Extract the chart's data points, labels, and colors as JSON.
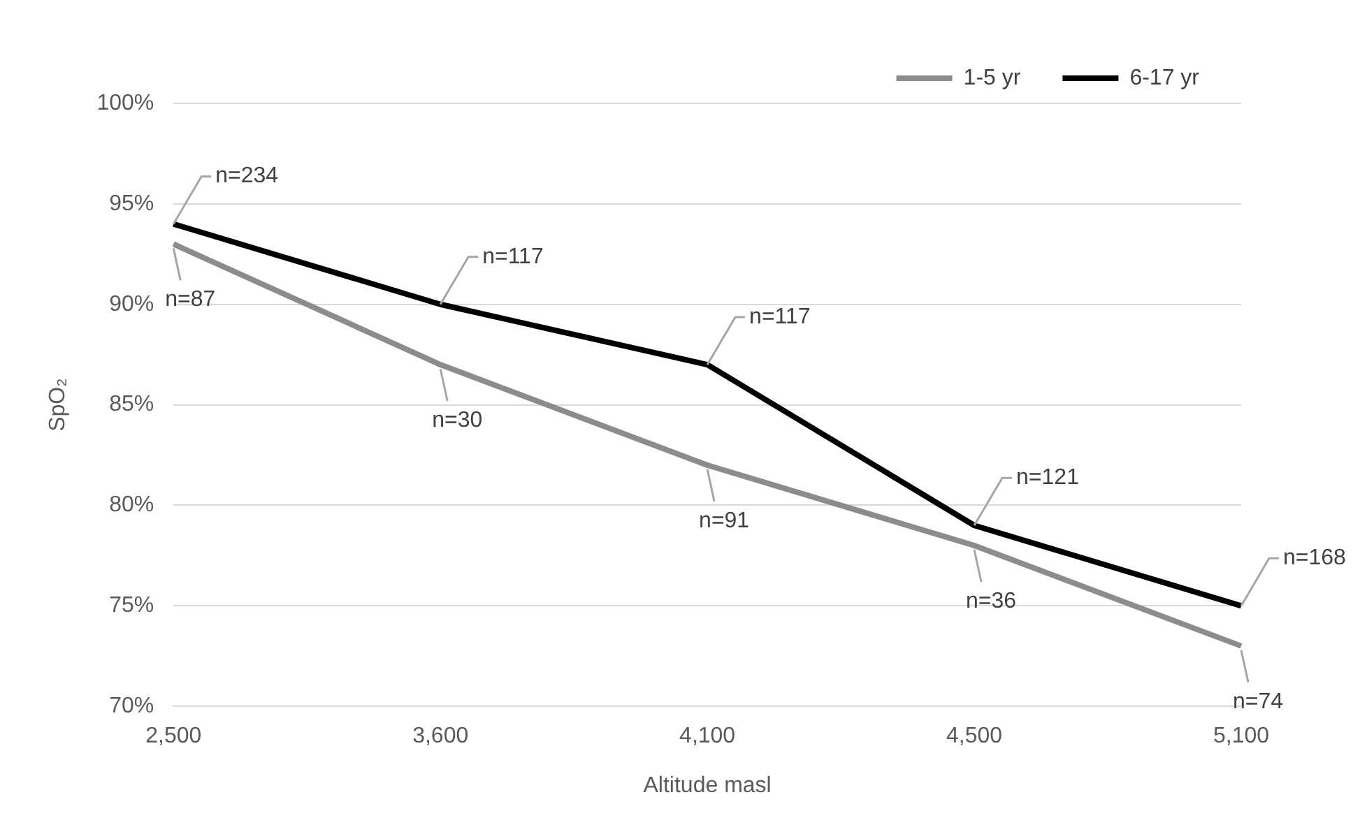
{
  "chart_data": {
    "type": "line",
    "xlabel": "Altitude masl",
    "ylabel": "SpO₂",
    "categories": [
      "2,500",
      "3,600",
      "4,100",
      "4,500",
      "5,100"
    ],
    "series": [
      {
        "name": "1-5 yr",
        "color": "#8c8c8c",
        "values": [
          93,
          87,
          82,
          78,
          73
        ]
      },
      {
        "name": "6-17 yr",
        "color": "#000000",
        "values": [
          94,
          90,
          87,
          79,
          75
        ]
      }
    ],
    "ylim": [
      70,
      100
    ],
    "yticks": [
      {
        "value": 70,
        "label": "70%"
      },
      {
        "value": 75,
        "label": "75%"
      },
      {
        "value": 80,
        "label": "80%"
      },
      {
        "value": 85,
        "label": "85%"
      },
      {
        "value": 90,
        "label": "90%"
      },
      {
        "value": 95,
        "label": "95%"
      },
      {
        "value": 100,
        "label": "100%"
      }
    ],
    "grid": "y",
    "legend": "top right",
    "marker": "none",
    "line_style": "solid",
    "annotations": [
      {
        "text": "n=87",
        "x": "2,500",
        "y": 93
      },
      {
        "text": "n=30",
        "x": "3,600",
        "y": 87
      },
      {
        "text": "n=91",
        "x": "4,100",
        "y": 82
      },
      {
        "text": "n=36",
        "x": "4,500",
        "y": 78
      },
      {
        "text": "n=74",
        "x": "5,100",
        "y": 73
      },
      {
        "text": "n=234",
        "x": "2,500",
        "y": 94
      },
      {
        "text": "n=117",
        "x": "3,600",
        "y": 90
      },
      {
        "text": "n=117",
        "x": "4,100",
        "y": 87
      },
      {
        "text": "n=121",
        "x": "4,500",
        "y": 79
      },
      {
        "text": "n=168",
        "x": "5,100",
        "y": 75
      }
    ]
  }
}
